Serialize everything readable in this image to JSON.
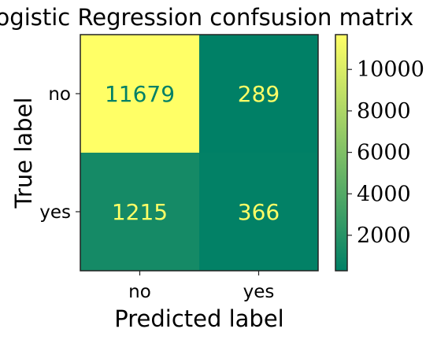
{
  "chart_data": {
    "type": "heatmap",
    "title": "Logistic Regression confsusion matrix",
    "xlabel": "Predicted label",
    "ylabel": "True label",
    "x_categories": [
      "no",
      "yes"
    ],
    "y_categories": [
      "no",
      "yes"
    ],
    "values": [
      [
        11679,
        289
      ],
      [
        1215,
        366
      ]
    ],
    "colormap": "summer",
    "colorbar": {
      "min": 289,
      "max": 11679,
      "ticks": [
        2000,
        4000,
        6000,
        8000,
        10000
      ],
      "tick_labels": [
        "2000",
        "4000",
        "6000",
        "8000",
        "10000"
      ]
    },
    "colors": {
      "low": "#008066",
      "high": "#ffff66",
      "text_on_low": "#ffff66",
      "text_on_high": "#008066"
    }
  }
}
